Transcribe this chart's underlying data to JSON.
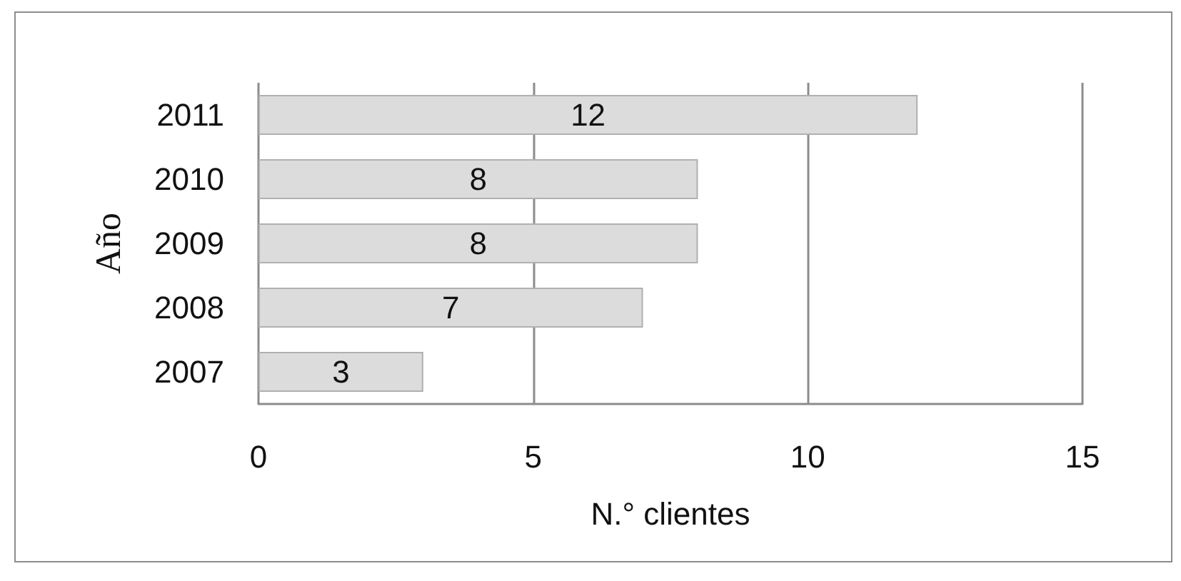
{
  "chart_data": {
    "type": "bar",
    "orientation": "horizontal",
    "xlabel": "N.° clientes",
    "ylabel": "Año",
    "categories": [
      "2011",
      "2010",
      "2009",
      "2008",
      "2007"
    ],
    "values": [
      12,
      8,
      8,
      7,
      3
    ],
    "color": "#dcdcdc",
    "xlim": [
      0,
      15
    ],
    "xticks": [
      0,
      5,
      10,
      15
    ],
    "grid": "x",
    "data_labels": true
  }
}
